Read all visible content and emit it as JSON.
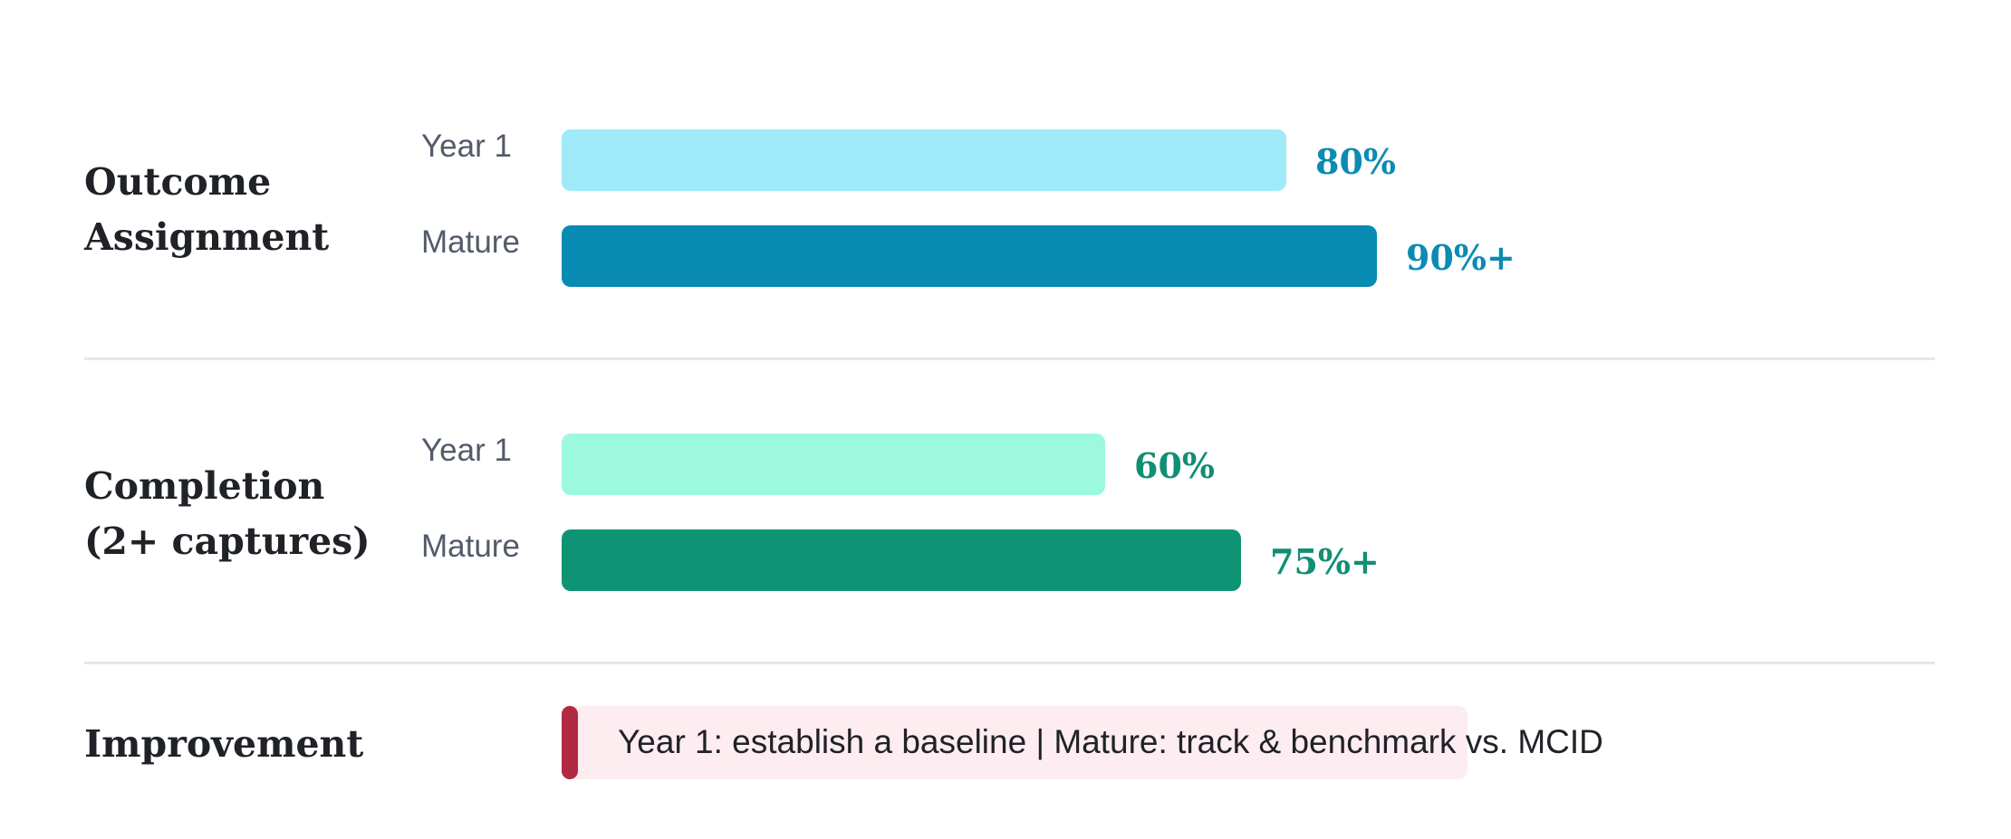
{
  "chart_data": {
    "type": "bar",
    "orientation": "horizontal",
    "title": "",
    "xlabel": "",
    "ylabel": "",
    "xlim": [
      0,
      100
    ],
    "grid": false,
    "legend": "none",
    "groups": [
      {
        "title": "Outcome\nAssignment",
        "bars": [
          {
            "label": "Year 1",
            "value": 80,
            "display": "80%",
            "color": "#9eeaf8",
            "label_color": "#0a8bb3"
          },
          {
            "label": "Mature",
            "value": 90,
            "display": "90%+",
            "color": "#078bb3",
            "label_color": "#0a8bb3"
          }
        ]
      },
      {
        "title": "Completion\n(2+ captures)",
        "bars": [
          {
            "label": "Year 1",
            "value": 60,
            "display": "60%",
            "color": "#9cf9dd",
            "label_color": "#108f74"
          },
          {
            "label": "Mature",
            "value": 75,
            "display": "75%+",
            "color": "#109374",
            "label_color": "#108f74"
          }
        ]
      }
    ],
    "note": {
      "title": "Improvement",
      "text": "Year 1: establish a baseline | Mature: track & benchmark vs. MCID",
      "box_color": "#fdecf0",
      "accent_color": "#b12a42"
    }
  }
}
